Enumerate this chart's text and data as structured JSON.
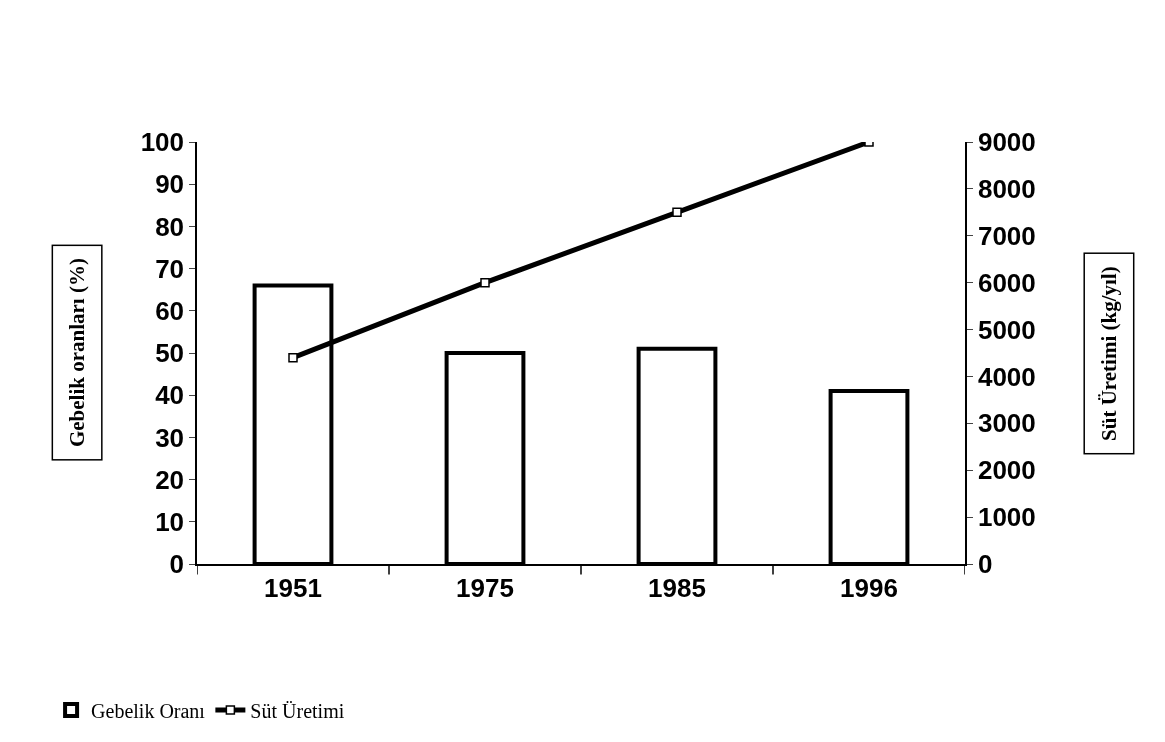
{
  "chart_data": {
    "type": "bar",
    "categories": [
      "1951",
      "1975",
      "1985",
      "1996"
    ],
    "ylabel": "Gebelik oranları (%)",
    "y2label": "Süt Üretimi (kg/yıl)",
    "series": [
      {
        "name": "Gebelik Oranı",
        "color": "#ffffff",
        "values": [
          66,
          50,
          51,
          41
        ]
      },
      {
        "name": "Süt Üretimi",
        "type": "line",
        "axis": "y2",
        "color": "#000000",
        "marker": "square",
        "values": [
          4400,
          6000,
          7500,
          9000
        ]
      }
    ],
    "ylim": [
      0,
      100
    ],
    "yticks": [
      0,
      10,
      20,
      30,
      40,
      50,
      60,
      70,
      80,
      90,
      100
    ],
    "y2lim": [
      0,
      9000
    ],
    "y2ticks": [
      0,
      1000,
      2000,
      3000,
      4000,
      5000,
      6000,
      7000,
      8000,
      9000
    ],
    "legend": "bottom left"
  }
}
